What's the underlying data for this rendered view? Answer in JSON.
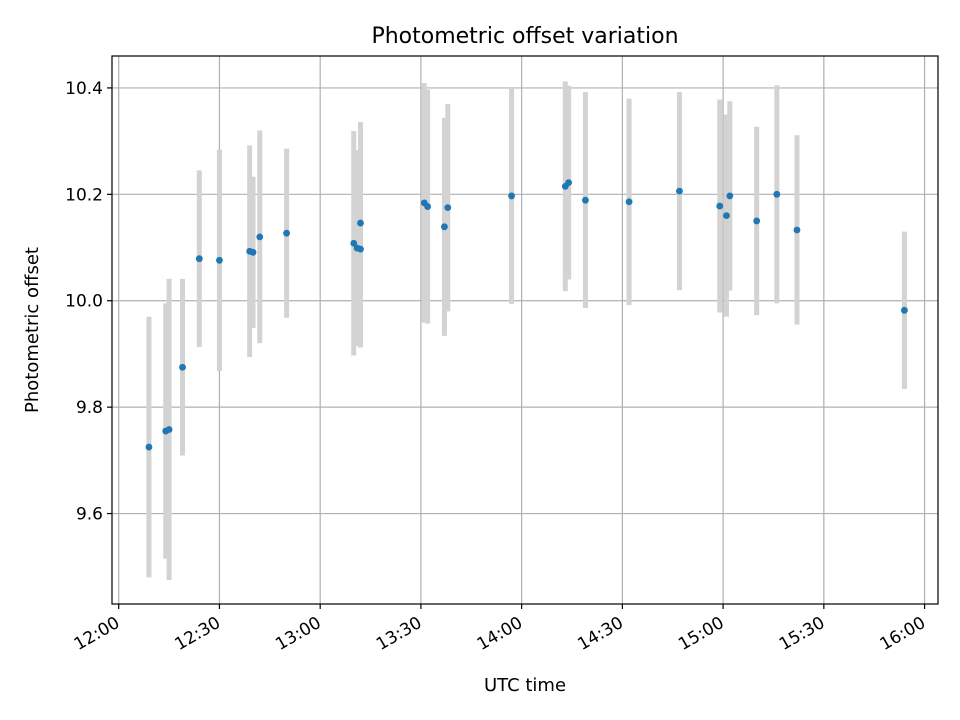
{
  "chart_data": {
    "type": "scatter",
    "title": "Photometric offset variation",
    "xlabel": "UTC time",
    "ylabel": "Photometric offset",
    "x_tick_labels": [
      "12:00",
      "12:30",
      "13:00",
      "13:30",
      "14:00",
      "14:30",
      "15:00",
      "15:30",
      "16:00"
    ],
    "y_tick_labels": [
      "9.6",
      "9.8",
      "10.0",
      "10.2",
      "10.4"
    ],
    "xlim": [
      "11:58",
      "16:04"
    ],
    "ylim": [
      9.43,
      10.46
    ],
    "grid": true,
    "colors": {
      "points": "#1f77b4",
      "errorbars": "#d3d3d3",
      "grid": "#b0b0b0"
    },
    "points": [
      {
        "x": "12:09",
        "y": 9.725,
        "yerr": 0.245
      },
      {
        "x": "12:14",
        "y": 9.755,
        "yerr": 0.24
      },
      {
        "x": "12:15",
        "y": 9.758,
        "yerr": 0.283
      },
      {
        "x": "12:19",
        "y": 9.875,
        "yerr": 0.166
      },
      {
        "x": "12:24",
        "y": 10.079,
        "yerr": 0.166
      },
      {
        "x": "12:30",
        "y": 10.076,
        "yerr": 0.208
      },
      {
        "x": "12:39",
        "y": 10.093,
        "yerr": 0.199
      },
      {
        "x": "12:40",
        "y": 10.091,
        "yerr": 0.142
      },
      {
        "x": "12:42",
        "y": 10.12,
        "yerr": 0.2
      },
      {
        "x": "12:50",
        "y": 10.127,
        "yerr": 0.159
      },
      {
        "x": "13:10",
        "y": 10.108,
        "yerr": 0.211
      },
      {
        "x": "13:11",
        "y": 10.099,
        "yerr": 0.184
      },
      {
        "x": "13:12",
        "y": 10.097,
        "yerr": 0.185
      },
      {
        "x": "13:12",
        "y": 10.146,
        "yerr": 0.19
      },
      {
        "x": "13:31",
        "y": 10.184,
        "yerr": 0.225
      },
      {
        "x": "13:32",
        "y": 10.177,
        "yerr": 0.22
      },
      {
        "x": "13:37",
        "y": 10.139,
        "yerr": 0.205
      },
      {
        "x": "13:38",
        "y": 10.175,
        "yerr": 0.195
      },
      {
        "x": "13:57",
        "y": 10.197,
        "yerr": 0.203
      },
      {
        "x": "14:13",
        "y": 10.215,
        "yerr": 0.197
      },
      {
        "x": "14:14",
        "y": 10.222,
        "yerr": 0.182
      },
      {
        "x": "14:19",
        "y": 10.189,
        "yerr": 0.203
      },
      {
        "x": "14:32",
        "y": 10.186,
        "yerr": 0.194
      },
      {
        "x": "14:47",
        "y": 10.206,
        "yerr": 0.186
      },
      {
        "x": "14:59",
        "y": 10.178,
        "yerr": 0.2
      },
      {
        "x": "15:01",
        "y": 10.16,
        "yerr": 0.19
      },
      {
        "x": "15:02",
        "y": 10.197,
        "yerr": 0.178
      },
      {
        "x": "15:10",
        "y": 10.15,
        "yerr": 0.177
      },
      {
        "x": "15:16",
        "y": 10.2,
        "yerr": 0.205
      },
      {
        "x": "15:22",
        "y": 10.133,
        "yerr": 0.178
      },
      {
        "x": "15:54",
        "y": 9.982,
        "yerr": 0.148
      }
    ]
  }
}
